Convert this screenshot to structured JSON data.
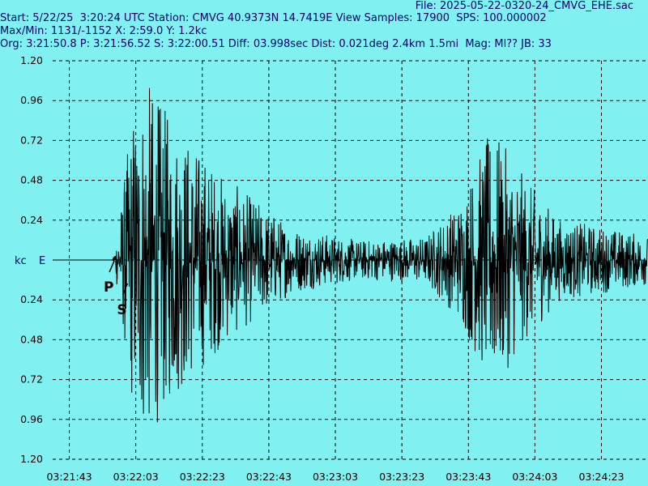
{
  "header": {
    "file": "File: 2025-05-22-0320-24_CMVG_EHE.sac",
    "start": "Start: 5/22/25  3:20:24 UTC Station: CMVG 40.9373N 14.7419E View Samples: 17900  SPS: 100.000002",
    "maxmin": "Max/Min: 1131/-1152 X: 2:59.0 Y: 1.2kc",
    "org": "Org: 3:21:50.8 P: 3:21:56.52 S: 3:22:00.51 Diff: 03.998sec Dist: 0.021deg 2.4km 1.5mi  Mag: Ml?? JB: 33"
  },
  "colors": {
    "background": "#80f0f0",
    "trace": "#000000",
    "grid": "#000000",
    "header_text": "#000070"
  },
  "chart_data": {
    "type": "line",
    "channel": "E",
    "unit_label": "kc",
    "ylim": [
      -1.2,
      1.2
    ],
    "y_tick_values": [
      1.2,
      0.96,
      0.72,
      0.48,
      0.24,
      0,
      -0.24,
      -0.48,
      -0.72,
      -0.96,
      -1.2
    ],
    "y_tick_labels": [
      "1.20",
      "0.96",
      "0.72",
      "0.48",
      "0.24",
      "",
      "0.24",
      "0.48",
      "0.72",
      "0.96",
      "1.20"
    ],
    "x_tick_labels": [
      "03:21:43",
      "03:22:03",
      "03:22:23",
      "03:22:43",
      "03:23:03",
      "03:23:23",
      "03:23:43",
      "03:24:03",
      "03:24:23"
    ],
    "xlim": [
      "03:21:38",
      "03:24:37"
    ],
    "grid": true,
    "phases": [
      {
        "label": "P",
        "time": "03:21:56.52"
      },
      {
        "label": "S",
        "time": "03:22:00.51"
      }
    ],
    "envelope": {
      "description_points_time": [
        "03:21:38",
        "03:21:56",
        "03:21:58",
        "03:22:02",
        "03:22:06",
        "03:22:14",
        "03:22:30",
        "03:22:50",
        "03:23:10",
        "03:23:30",
        "03:23:40",
        "03:23:50",
        "03:24:00",
        "03:24:10",
        "03:24:37"
      ],
      "amplitude_kc": [
        0.0,
        0.0,
        0.25,
        0.9,
        1.1,
        0.85,
        0.5,
        0.2,
        0.12,
        0.14,
        0.35,
        0.8,
        0.5,
        0.25,
        0.15
      ]
    }
  }
}
